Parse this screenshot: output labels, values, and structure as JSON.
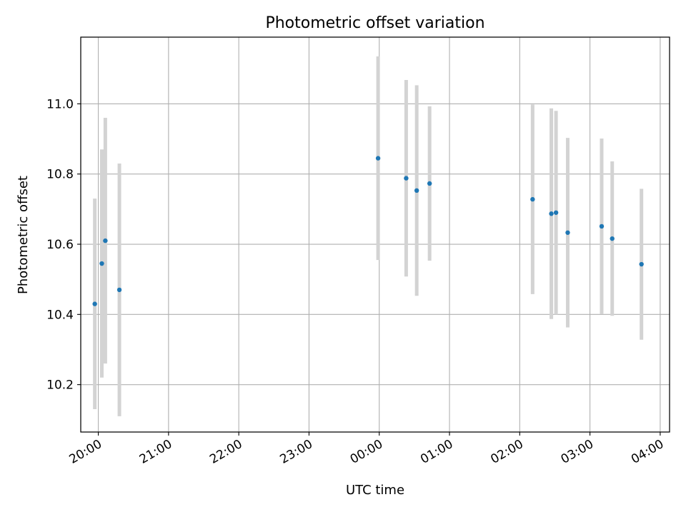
{
  "chart_data": {
    "type": "scatter",
    "title": "Photometric offset variation",
    "xlabel": "UTC time",
    "ylabel": "Photometric offset",
    "xlim": [
      "19:45",
      "04:08"
    ],
    "ylim": [
      10.065,
      11.19
    ],
    "grid": true,
    "x_ticks": [
      "20:00",
      "21:00",
      "22:00",
      "23:00",
      "00:00",
      "01:00",
      "02:00",
      "03:00",
      "04:00"
    ],
    "y_ticks": [
      "10.2",
      "10.4",
      "10.6",
      "10.8",
      "11.0"
    ],
    "colors": {
      "point": "#1f77b4",
      "errorbar": "#d3d3d3",
      "grid": "#b0b0b0",
      "axes": "#000000"
    },
    "points": [
      {
        "x": "19:57",
        "y": 10.43,
        "yerr": 0.3
      },
      {
        "x": "20:03",
        "y": 10.545,
        "yerr": 0.325
      },
      {
        "x": "20:06",
        "y": 10.61,
        "yerr": 0.35
      },
      {
        "x": "20:18",
        "y": 10.47,
        "yerr": 0.36
      },
      {
        "x": "23:59",
        "y": 10.845,
        "yerr": 0.29
      },
      {
        "x": "00:23",
        "y": 10.788,
        "yerr": 0.28
      },
      {
        "x": "00:32",
        "y": 10.753,
        "yerr": 0.3
      },
      {
        "x": "00:43",
        "y": 10.773,
        "yerr": 0.22
      },
      {
        "x": "02:11",
        "y": 10.728,
        "yerr": 0.27
      },
      {
        "x": "02:27",
        "y": 10.687,
        "yerr": 0.3
      },
      {
        "x": "02:31",
        "y": 10.69,
        "yerr": 0.29
      },
      {
        "x": "02:41",
        "y": 10.633,
        "yerr": 0.27
      },
      {
        "x": "03:10",
        "y": 10.651,
        "yerr": 0.25
      },
      {
        "x": "03:19",
        "y": 10.616,
        "yerr": 0.22
      },
      {
        "x": "03:44",
        "y": 10.543,
        "yerr": 0.215
      }
    ]
  }
}
